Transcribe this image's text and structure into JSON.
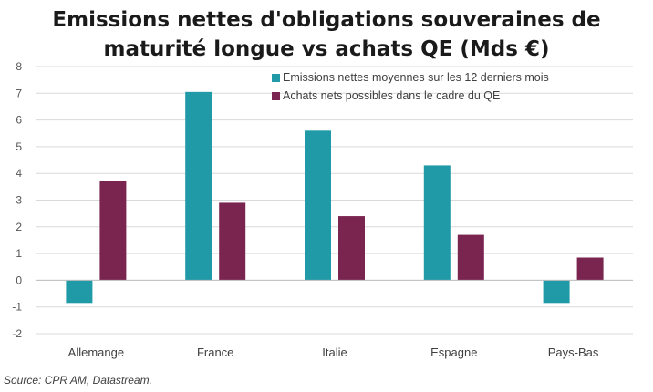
{
  "chart_data": {
    "type": "bar",
    "title_line1": "Emissions nettes d'obligations souveraines de",
    "title_line2": "maturité longue vs achats QE (Mds €)",
    "categories": [
      "Allemange",
      "France",
      "Italie",
      "Espagne",
      "Pays-Bas"
    ],
    "series": [
      {
        "name": "Emissions nettes moyennes sur les 12 derniers mois",
        "color": "#1f9aa6",
        "values": [
          -0.85,
          7.05,
          5.6,
          4.3,
          -0.85
        ]
      },
      {
        "name": "Achats nets possibles dans le cadre du QE",
        "color": "#7a2450",
        "values": [
          3.7,
          2.9,
          2.4,
          1.7,
          0.85
        ]
      }
    ],
    "ylim": [
      -2,
      8
    ],
    "yticks": [
      -2,
      -1,
      0,
      1,
      2,
      3,
      4,
      5,
      6,
      7,
      8
    ],
    "grid": true,
    "legend_position": "top-right"
  },
  "source": "Source: CPR AM, Datastream."
}
